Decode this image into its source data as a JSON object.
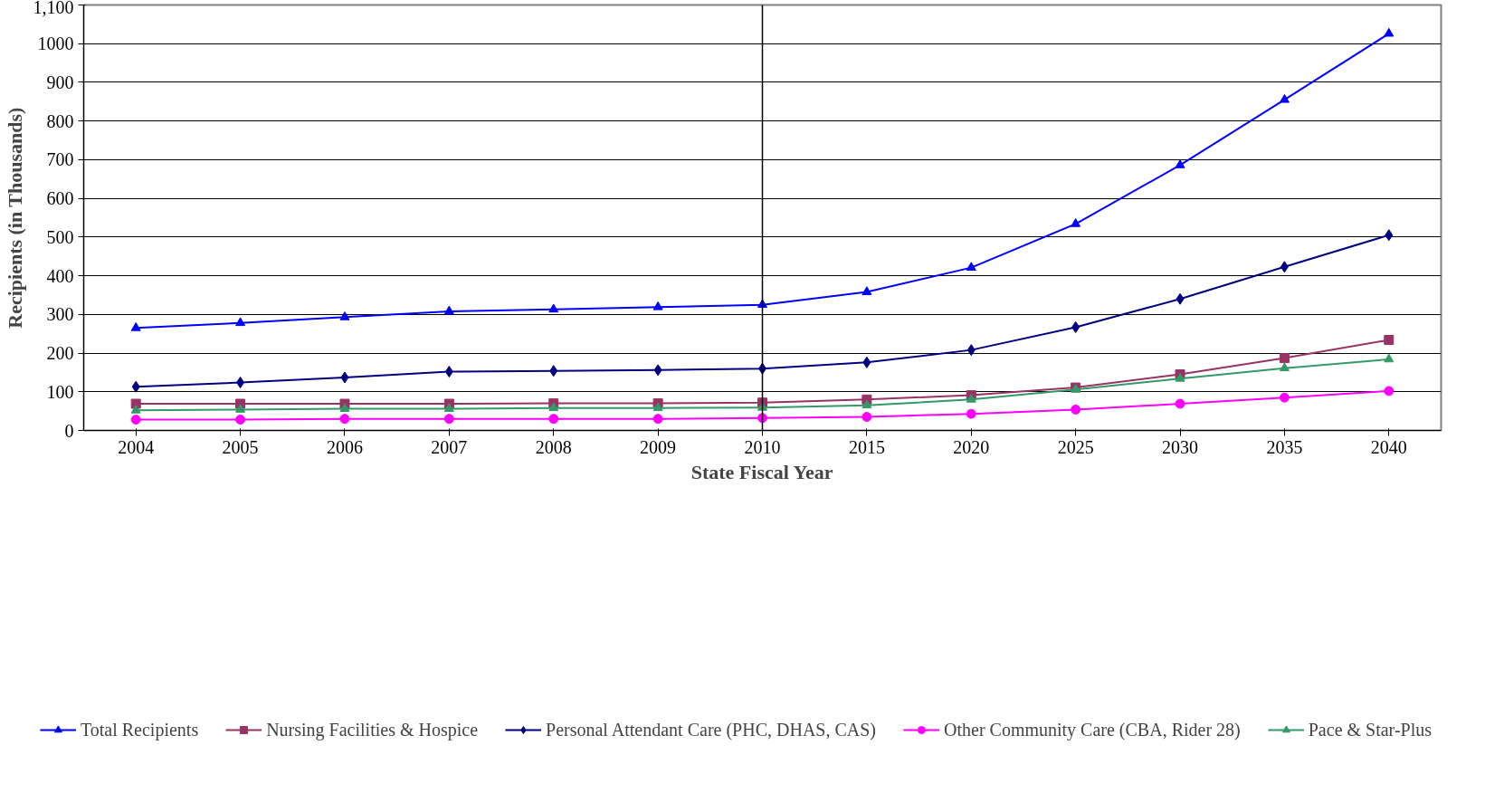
{
  "chart_data": {
    "type": "line",
    "xlabel": "State Fiscal Year",
    "ylabel": "Recipients (in Thousands)",
    "categories": [
      "2004",
      "2005",
      "2006",
      "2007",
      "2008",
      "2009",
      "2010",
      "2015",
      "2020",
      "2025",
      "2030",
      "2035",
      "2040"
    ],
    "series": [
      {
        "name": "Total Recipients",
        "color": "#0000ff",
        "marker": "triangle",
        "values": [
          265,
          278,
          293,
          308,
          313,
          319,
          325,
          358,
          421,
          534,
          686,
          855,
          1026
        ]
      },
      {
        "name": "Nursing Facilities & Hospice",
        "color": "#993366",
        "marker": "square",
        "values": [
          69,
          69,
          69,
          69,
          70,
          70,
          72,
          80,
          91,
          111,
          145,
          187,
          234
        ]
      },
      {
        "name": "Personal Attendant Care (PHC, DHAS, CAS)",
        "color": "#000080",
        "marker": "diamond",
        "values": [
          113,
          124,
          137,
          152,
          154,
          156,
          160,
          176,
          208,
          267,
          340,
          423,
          505
        ]
      },
      {
        "name": "Other Community Care (CBA, Rider 28)",
        "color": "#ff00ff",
        "marker": "circle",
        "values": [
          28,
          28,
          30,
          30,
          30,
          30,
          32,
          35,
          43,
          54,
          69,
          85,
          102
        ]
      },
      {
        "name": "Pace & Star-Plus",
        "color": "#339966",
        "marker": "triangle",
        "values": [
          52,
          54,
          56,
          56,
          58,
          58,
          59,
          65,
          80,
          106,
          134,
          161,
          184
        ]
      }
    ],
    "ylim": [
      0,
      1100
    ],
    "yticks": [
      0,
      100,
      200,
      300,
      400,
      500,
      600,
      700,
      800,
      900,
      1000,
      {
        "value": 1100,
        "label": "1,100"
      }
    ],
    "ref_lines": [
      {
        "axis": "x",
        "value": "2010",
        "color": "#000000"
      }
    ],
    "grid": "y",
    "legend": "bottom",
    "line_style": "solid"
  }
}
